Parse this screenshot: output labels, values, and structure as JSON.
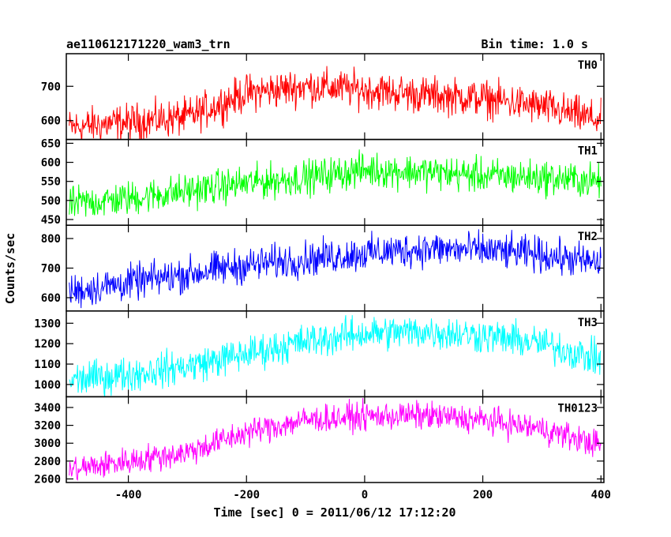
{
  "header": {
    "left": "ae110612171220_wam3_trn",
    "right": "Bin time: 1.0 s"
  },
  "axes": {
    "xlabel": "Time [sec] 0 = 2011/06/12 17:12:20",
    "ylabel": "Counts/sec"
  },
  "chart_data": {
    "type": "line",
    "title": "ae110612171220_wam3_trn",
    "subtitle": "Bin time: 1.0 s",
    "xlabel": "Time [sec] 0 = 2011/06/12 17:12:20",
    "ylabel": "Counts/sec",
    "xlim": [
      -505,
      405
    ],
    "xticks": [
      -400,
      -200,
      0,
      200,
      400
    ],
    "grid": false,
    "panels": [
      {
        "name": "TH0",
        "color": "#ff0000",
        "ylim": [
          545,
          795
        ],
        "yticks": [
          600,
          700
        ],
        "x": [
          -500,
          -400,
          -300,
          -200,
          -100,
          0,
          100,
          200,
          300,
          400
        ],
        "y": [
          580,
          595,
          610,
          680,
          700,
          690,
          675,
          665,
          640,
          600
        ],
        "noise": 38
      },
      {
        "name": "TH1",
        "color": "#00ff00",
        "ylim": [
          435,
          660
        ],
        "yticks": [
          450,
          500,
          550,
          600,
          650
        ],
        "x": [
          -500,
          -400,
          -300,
          -200,
          -100,
          0,
          100,
          200,
          300,
          400
        ],
        "y": [
          490,
          505,
          525,
          545,
          560,
          580,
          575,
          565,
          560,
          550
        ],
        "noise": 32
      },
      {
        "name": "TH2",
        "color": "#0000ff",
        "ylim": [
          555,
          845
        ],
        "yticks": [
          600,
          700,
          800
        ],
        "x": [
          -500,
          -400,
          -300,
          -200,
          -100,
          0,
          100,
          200,
          300,
          400
        ],
        "y": [
          620,
          650,
          680,
          710,
          730,
          750,
          765,
          760,
          745,
          715
        ],
        "noise": 42
      },
      {
        "name": "TH3",
        "color": "#00ffff",
        "ylim": [
          940,
          1360
        ],
        "yticks": [
          1000,
          1100,
          1200,
          1300
        ],
        "x": [
          -500,
          -400,
          -300,
          -200,
          -100,
          0,
          100,
          200,
          300,
          400
        ],
        "y": [
          1020,
          1050,
          1090,
          1150,
          1210,
          1250,
          1260,
          1240,
          1200,
          1120
        ],
        "noise": 60
      },
      {
        "name": "TH0123",
        "color": "#ff00ff",
        "ylim": [
          2560,
          3520
        ],
        "yticks": [
          2600,
          2800,
          3000,
          3200,
          3400
        ],
        "x": [
          -500,
          -400,
          -300,
          -200,
          -100,
          0,
          100,
          200,
          300,
          400
        ],
        "y": [
          2700,
          2800,
          2900,
          3120,
          3260,
          3300,
          3310,
          3260,
          3160,
          2980
        ],
        "noise": 110
      }
    ]
  }
}
